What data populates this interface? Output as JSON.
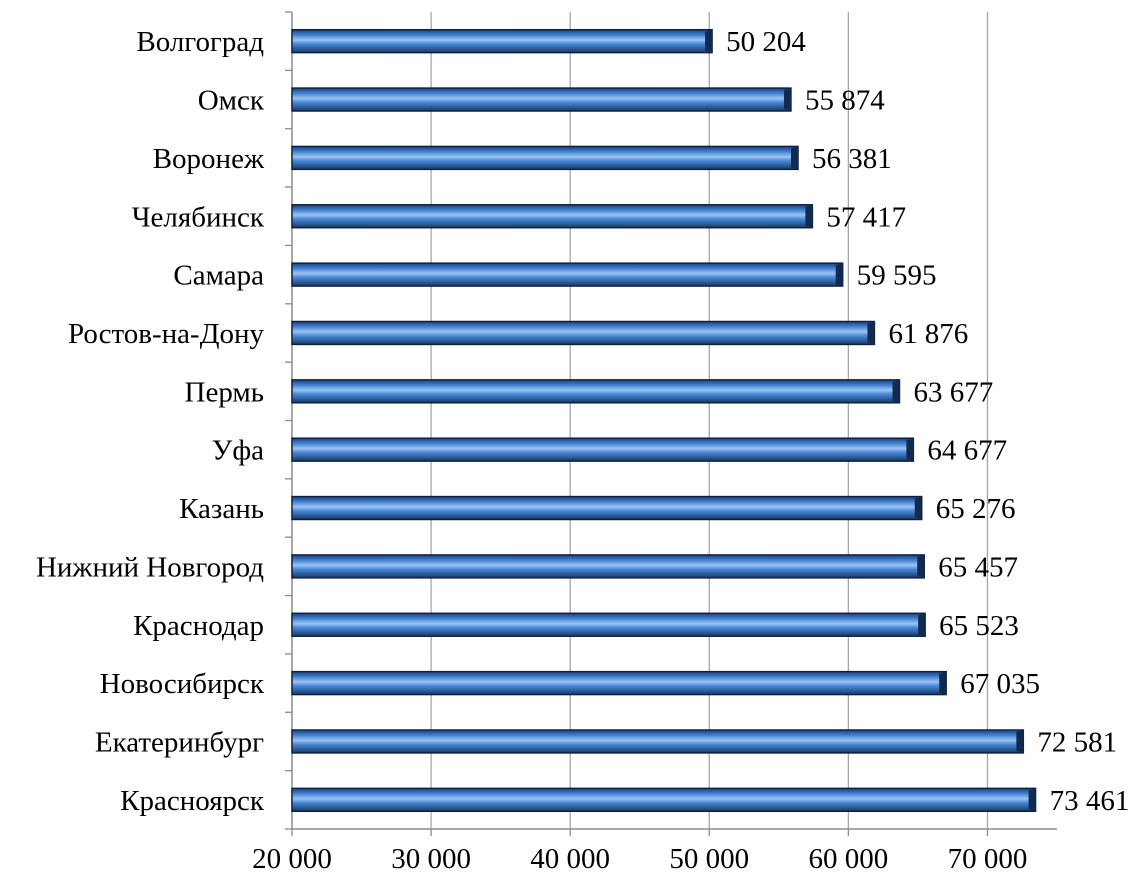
{
  "chart_data": {
    "type": "bar",
    "orientation": "horizontal",
    "categories": [
      "Волгоград",
      "Омск",
      "Воронеж",
      "Челябинск",
      "Самара",
      "Ростов-на-Дону",
      "Пермь",
      "Уфа",
      "Казань",
      "Нижний Новгород",
      "Краснодар",
      "Новосибирск",
      "Екатеринбург",
      "Красноярск"
    ],
    "values": [
      50204,
      55874,
      56381,
      57417,
      59595,
      61876,
      63677,
      64677,
      65276,
      65457,
      65523,
      67035,
      72581,
      73461
    ],
    "value_labels": [
      "50 204",
      "55 874",
      "56 381",
      "57 417",
      "59 595",
      "61 876",
      "63 677",
      "64 677",
      "65 276",
      "65 457",
      "65 523",
      "67 035",
      "72 581",
      "73 461"
    ],
    "xlim": [
      20000,
      75000
    ],
    "xticks": [
      20000,
      30000,
      40000,
      50000,
      60000,
      70000
    ],
    "xtick_labels": [
      "20 000",
      "30 000",
      "40 000",
      "50 000",
      "60 000",
      "70 000"
    ],
    "grid": true,
    "bar_color": "#3a74c4",
    "title": "",
    "xlabel": "",
    "ylabel": ""
  }
}
